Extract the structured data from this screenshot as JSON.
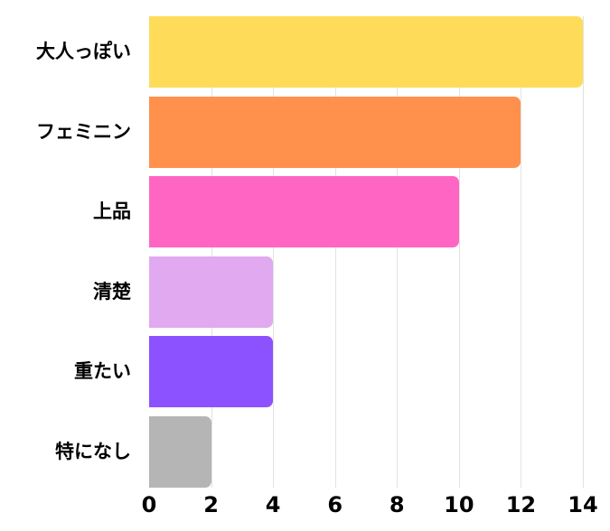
{
  "chart_data": {
    "type": "bar",
    "orientation": "horizontal",
    "title": "",
    "xlabel": "",
    "ylabel": "",
    "categories": [
      "大人っぽい",
      "フェミニン",
      "上品",
      "清楚",
      "重たい",
      "特になし"
    ],
    "values": [
      14,
      12,
      10,
      4,
      4,
      2
    ],
    "colors": [
      "#FEDC5A",
      "#FF914D",
      "#FF66C4",
      "#E1A9EF",
      "#8C52FF",
      "#B5B5B5"
    ],
    "xlim": [
      0,
      14
    ],
    "xticks": [
      "0",
      "2",
      "4",
      "6",
      "8",
      "10",
      "12",
      "14"
    ],
    "grid": "vertical",
    "legend": "none"
  }
}
